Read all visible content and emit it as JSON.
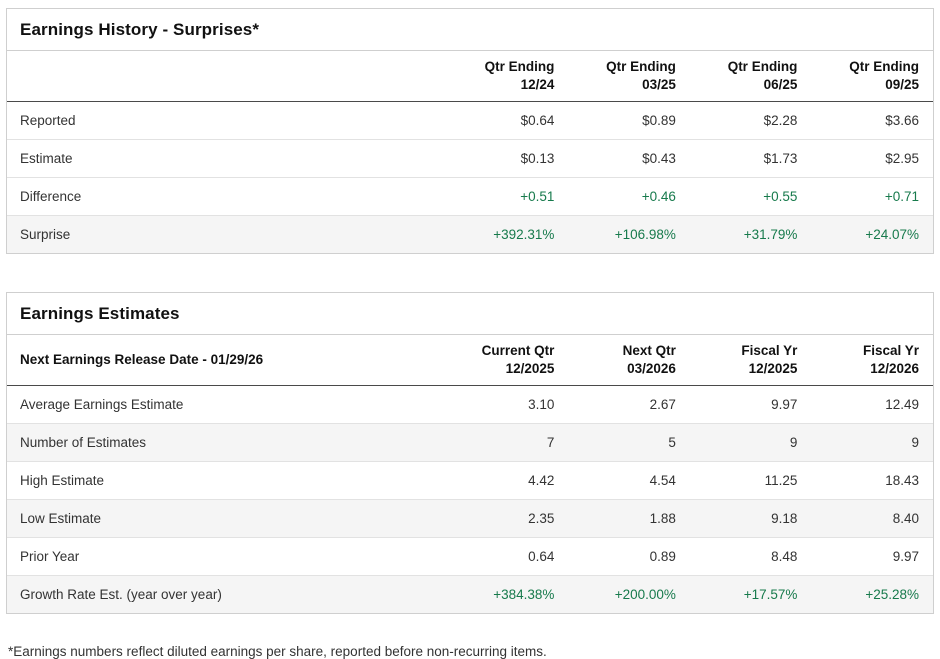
{
  "colors": {
    "green": "#177a4c",
    "shaded": "#f5f5f5",
    "border": "#cfcfcf",
    "row-line": "#e2e2e2",
    "header-line": "#4a4a4a",
    "text": "#333333",
    "heading": "#111111"
  },
  "earnings_history": {
    "title": "Earnings History - Surprises*",
    "columns": [
      {
        "line1": "Qtr Ending",
        "line2": "12/24"
      },
      {
        "line1": "Qtr Ending",
        "line2": "03/25"
      },
      {
        "line1": "Qtr Ending",
        "line2": "06/25"
      },
      {
        "line1": "Qtr Ending",
        "line2": "09/25"
      }
    ],
    "rows": [
      {
        "label": "Reported",
        "values": [
          "$0.64",
          "$0.89",
          "$2.28",
          "$3.66"
        ]
      },
      {
        "label": "Estimate",
        "values": [
          "$0.13",
          "$0.43",
          "$1.73",
          "$2.95"
        ]
      },
      {
        "label": "Difference",
        "values": [
          "+0.51",
          "+0.46",
          "+0.55",
          "+0.71"
        ]
      },
      {
        "label": "Surprise",
        "values": [
          "+392.31%",
          "+106.98%",
          "+31.79%",
          "+24.07%"
        ]
      }
    ]
  },
  "earnings_estimates": {
    "title": "Earnings Estimates",
    "corner_label": "Next Earnings Release Date - 01/29/26",
    "columns": [
      {
        "line1": "Current Qtr",
        "line2": "12/2025"
      },
      {
        "line1": "Next Qtr",
        "line2": "03/2026"
      },
      {
        "line1": "Fiscal Yr",
        "line2": "12/2025"
      },
      {
        "line1": "Fiscal Yr",
        "line2": "12/2026"
      }
    ],
    "rows": [
      {
        "label": "Average Earnings Estimate",
        "values": [
          "3.10",
          "2.67",
          "9.97",
          "12.49"
        ]
      },
      {
        "label": "Number of Estimates",
        "values": [
          "7",
          "5",
          "9",
          "9"
        ]
      },
      {
        "label": "High Estimate",
        "values": [
          "4.42",
          "4.54",
          "11.25",
          "18.43"
        ]
      },
      {
        "label": "Low Estimate",
        "values": [
          "2.35",
          "1.88",
          "9.18",
          "8.40"
        ]
      },
      {
        "label": "Prior Year",
        "values": [
          "0.64",
          "0.89",
          "8.48",
          "9.97"
        ]
      },
      {
        "label": "Growth Rate Est. (year over year)",
        "values": [
          "+384.38%",
          "+200.00%",
          "+17.57%",
          "+25.28%"
        ]
      }
    ]
  },
  "footnote": "*Earnings numbers reflect diluted earnings per share, reported before non-recurring items."
}
